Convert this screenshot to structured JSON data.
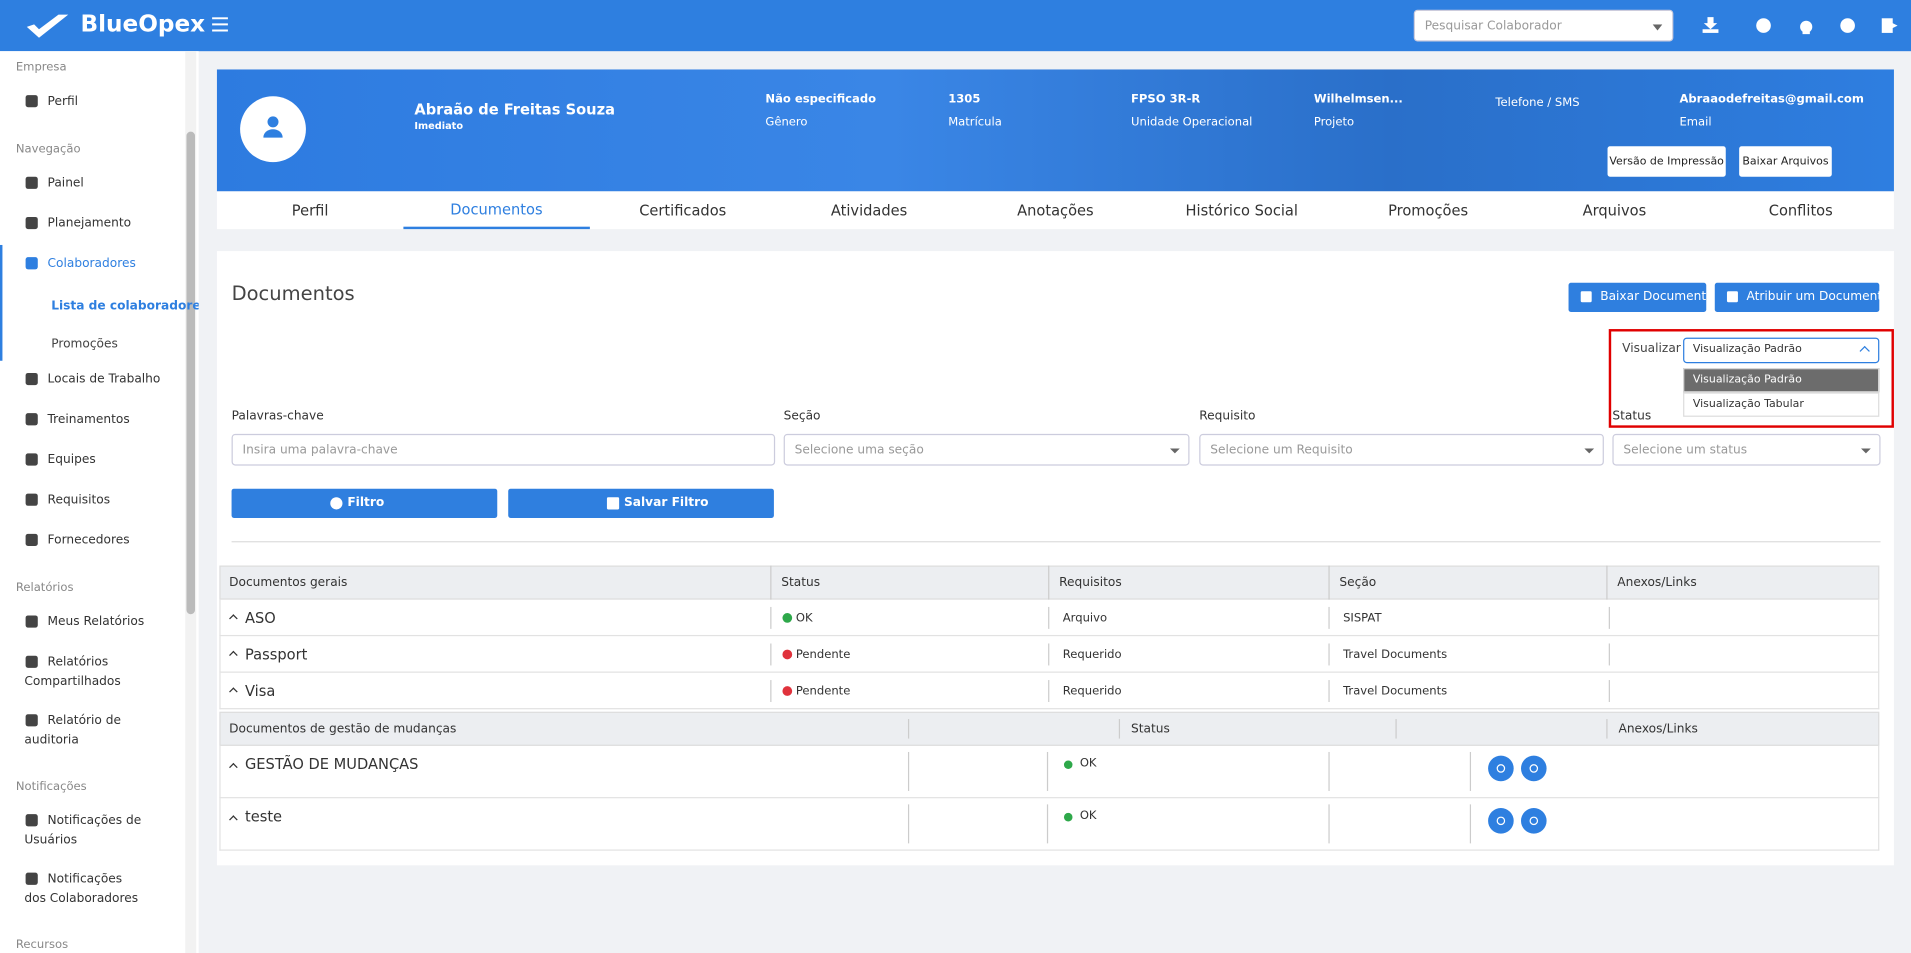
{
  "header": {
    "brand": "BlueOpex",
    "search_placeholder": "Pesquisar Colaborador"
  },
  "sidebar": {
    "groups": [
      {
        "title": "Empresa",
        "items": [
          {
            "label": "Perfil"
          }
        ]
      },
      {
        "title": "Navegação",
        "items": [
          {
            "label": "Painel"
          },
          {
            "label": "Planejamento"
          },
          {
            "label": "Colaboradores",
            "children": [
              "Lista de colaboradores",
              "Promoções"
            ]
          },
          {
            "label": "Locais de Trabalho"
          },
          {
            "label": "Treinamentos"
          },
          {
            "label": "Equipes"
          },
          {
            "label": "Requisitos"
          },
          {
            "label": "Fornecedores"
          }
        ]
      },
      {
        "title": "Relatórios",
        "items": [
          {
            "label": "Meus Relatórios"
          },
          {
            "label": "Relatórios Compartilhados"
          },
          {
            "label": "Relatório de auditoria"
          }
        ]
      },
      {
        "title": "Notificações",
        "items": [
          {
            "label": "Notificações de Usuários"
          },
          {
            "label": "Notificações dos Colaboradores"
          }
        ]
      },
      {
        "title": "Recursos"
      }
    ]
  },
  "profile": {
    "name": "Abraão de Freitas Souza",
    "role": "Imediato",
    "fields": [
      {
        "value": "Não especificado",
        "label": "Gênero"
      },
      {
        "value": "1305",
        "label": "Matrícula"
      },
      {
        "value": "FPSO 3R-R",
        "label": "Unidade Operacional"
      },
      {
        "value": "Wilhelmsen...",
        "label": "Projeto"
      },
      {
        "label": "Telefone / SMS"
      },
      {
        "value": "Abraaodefreitas@gmail.com",
        "label": "Email"
      }
    ],
    "buttons": [
      "Versão de Impressão",
      "Baixar Arquivos"
    ]
  },
  "tabs": [
    "Perfil",
    "Documentos",
    "Certificados",
    "Atividades",
    "Anotações",
    "Histórico Social",
    "Promoções",
    "Arquivos",
    "Conflitos"
  ],
  "documents": {
    "title": "Documentos",
    "buttons": [
      "Baixar Documentos",
      "Atribuir um Documento"
    ],
    "view": {
      "label": "Visualizar",
      "selected": "Visualização Padrão",
      "options": [
        "Visualização Padrão",
        "Visualização Tabular"
      ]
    },
    "filters": [
      {
        "label": "Palavras-chave",
        "placeholder": "Insira uma palavra-chave"
      },
      {
        "label": "Seção",
        "placeholder": "Selecione uma seção"
      },
      {
        "label": "Requisito",
        "placeholder": "Selecione um Requisito"
      },
      {
        "label": "Status",
        "placeholder": "Selecione um status"
      }
    ],
    "filter_buttons": [
      "Filtro",
      "Salvar Filtro"
    ],
    "general": {
      "headers": [
        "Documentos gerais",
        "Status",
        "Requisitos",
        "Seção",
        "Anexos/Links"
      ],
      "rows": [
        [
          "ASO",
          "OK",
          "Arquivo",
          "SISPAT"
        ],
        [
          "Passport",
          "Pendente",
          "Requerido",
          "Travel Documents"
        ],
        [
          "Visa",
          "Pendente",
          "Requerido",
          "Travel Documents"
        ]
      ]
    },
    "changes": {
      "title": "Documentos de gestão de mudanças",
      "status_header": "Status",
      "attachments_header": "Anexos/Links",
      "rows": [
        {
          "name": "GESTÃO DE MUDANÇAS",
          "status": "OK"
        },
        {
          "name": "teste",
          "status": "OK"
        }
      ]
    }
  }
}
